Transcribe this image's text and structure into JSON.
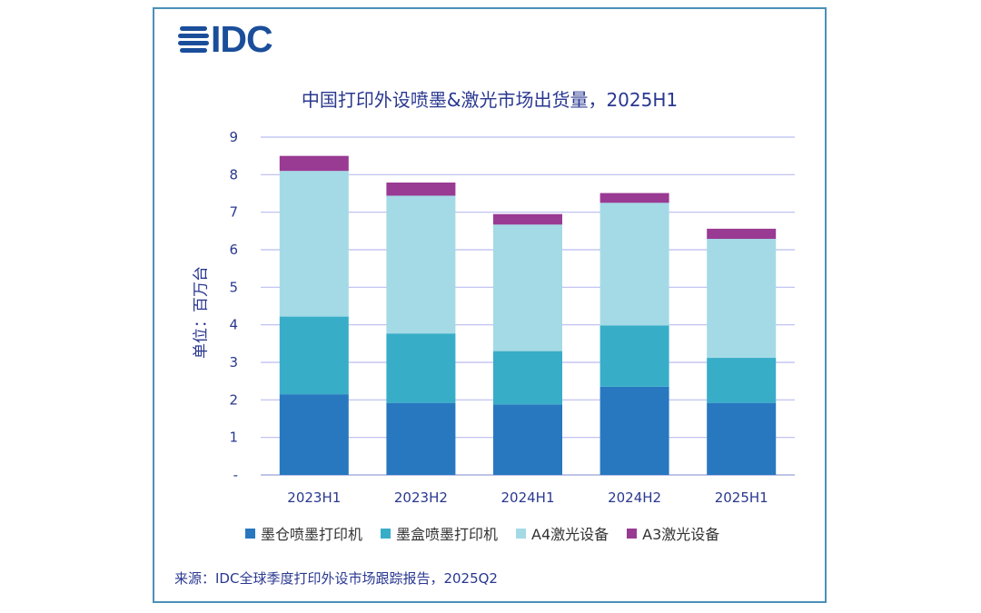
{
  "logo": {
    "text": "IDC"
  },
  "chart_data": {
    "type": "stacked-bar",
    "title": "中国打印外设喷墨&激光市场出货量，2025H1",
    "ylabel": "单位：百万台",
    "xlabel": "",
    "ylim": [
      0,
      9
    ],
    "yticks": [
      "-",
      "1",
      "2",
      "3",
      "4",
      "5",
      "6",
      "7",
      "8",
      "9"
    ],
    "categories": [
      "2023H1",
      "2023H2",
      "2024H1",
      "2024H2",
      "2025H1"
    ],
    "series": [
      {
        "name": "墨仓喷墨打印机",
        "color": "#2878c0",
        "values": [
          2.15,
          1.92,
          1.88,
          2.35,
          1.92
        ]
      },
      {
        "name": "墨盒喷墨打印机",
        "color": "#38adc8",
        "values": [
          2.07,
          1.85,
          1.42,
          1.63,
          1.2
        ]
      },
      {
        "name": "A4激光设备",
        "color": "#a4dae6",
        "values": [
          3.88,
          3.67,
          3.37,
          3.27,
          3.17
        ]
      },
      {
        "name": "A3激光设备",
        "color": "#993a93",
        "values": [
          0.4,
          0.35,
          0.28,
          0.26,
          0.27
        ]
      }
    ],
    "grid": true,
    "legend": "bottom"
  },
  "source": "来源：IDC全球季度打印外设市场跟踪报告，2025Q2"
}
